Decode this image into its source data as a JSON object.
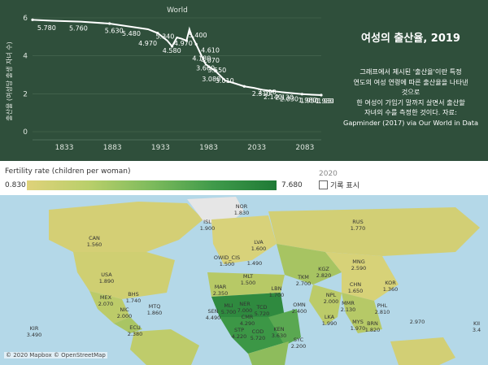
{
  "header": {
    "title": "여성의 출산율, 2019",
    "description": [
      "그래프에서 제시된 '출산율'이란 특정",
      "연도의 여성 연령에 따른 출산율을 나타낸",
      "것으로",
      "한 여성이 가임기 말까지 살면서 출산할",
      "자녀의 수를 측정한 것이다. 자료:",
      "Gapminder (2017) via Our World in Data"
    ]
  },
  "chart_data": {
    "type": "line",
    "title": "World",
    "ylabel": "출산율 (여성당 출생 자녀 수)",
    "xlim": [
      1800,
      2100
    ],
    "ylim": [
      0,
      6
    ],
    "x_ticks": [
      "1833",
      "1883",
      "1933",
      "1983",
      "2033",
      "2083"
    ],
    "y_ticks": [
      "0",
      "2",
      "4",
      "6"
    ],
    "series": [
      {
        "x": [
          1800,
          1820,
          1850,
          1880,
          1900,
          1920,
          1930,
          1935,
          1940,
          1945,
          1950,
          1955,
          1960,
          1963,
          1965,
          1970,
          1975,
          1980,
          1990,
          2000,
          2010,
          2020,
          2030,
          2040,
          2050,
          2060,
          2070,
          2080,
          2090,
          2100
        ],
        "y": [
          5.9,
          5.85,
          5.8,
          5.7,
          5.55,
          5.4,
          5.2,
          5.0,
          4.8,
          4.5,
          4.97,
          4.9,
          4.8,
          5.4,
          5.1,
          4.61,
          4.07,
          3.55,
          3.2,
          2.7,
          2.55,
          2.39,
          2.31,
          2.2,
          2.14,
          2.08,
          2.03,
          1.98,
          1.95,
          1.93
        ]
      }
    ],
    "data_labels": [
      {
        "x": 1805,
        "y": 5.78,
        "text": "5.780"
      },
      {
        "x": 1838,
        "y": 5.76,
        "text": "5.760"
      },
      {
        "x": 1875,
        "y": 5.63,
        "text": "5.630"
      },
      {
        "x": 1893,
        "y": 5.48,
        "text": "5.480"
      },
      {
        "x": 1910,
        "y": 4.97,
        "text": "4.970"
      },
      {
        "x": 1928,
        "y": 5.34,
        "text": "5.340"
      },
      {
        "x": 1935,
        "y": 4.58,
        "text": "4.580"
      },
      {
        "x": 1947,
        "y": 4.97,
        "text": "4.970"
      },
      {
        "x": 1962,
        "y": 5.4,
        "text": "5.400"
      },
      {
        "x": 1975,
        "y": 4.61,
        "text": "4.610"
      },
      {
        "x": 1975,
        "y": 4.07,
        "text": "4.070"
      },
      {
        "x": 1966,
        "y": 4.18,
        "text": "4.180"
      },
      {
        "x": 1982,
        "y": 3.55,
        "text": "3.550"
      },
      {
        "x": 1970,
        "y": 3.66,
        "text": "3.660"
      },
      {
        "x": 1990,
        "y": 3.01,
        "text": "3.010"
      },
      {
        "x": 1976,
        "y": 3.08,
        "text": "3.080"
      },
      {
        "x": 2034,
        "y": 2.39,
        "text": "2.390"
      },
      {
        "x": 2028,
        "y": 2.31,
        "text": "2.310"
      },
      {
        "x": 2052,
        "y": 2.13,
        "text": "2.130"
      },
      {
        "x": 2040,
        "y": 2.14,
        "text": "2.140"
      },
      {
        "x": 2057,
        "y": 2.03,
        "text": "2.030"
      },
      {
        "x": 2076,
        "y": 1.98,
        "text": "1.980"
      },
      {
        "x": 2078,
        "y": 1.95,
        "text": "1.950"
      },
      {
        "x": 2094,
        "y": 1.93,
        "text": "1.930"
      },
      {
        "x": 2096,
        "y": 1.93,
        "text": "1.930"
      }
    ]
  },
  "legend": {
    "title": "Fertility rate (children per woman)",
    "min": "0.830",
    "max": "7.680",
    "year": "2020",
    "record_label": "기록 표시"
  },
  "map": {
    "attribution": "© 2020 Mapbox © OpenStreetMap",
    "countries": [
      {
        "code": "ISL",
        "value": "1.900"
      },
      {
        "code": "CAN",
        "value": "1.560"
      },
      {
        "code": "NOR",
        "value": "1.830"
      },
      {
        "code": "LVA",
        "value": "1.600"
      },
      {
        "code": "RUS",
        "value": "1.770"
      },
      {
        "code": "MNG",
        "value": "2.590"
      },
      {
        "code": "KGZ",
        "value": "2.820"
      },
      {
        "code": "TKM",
        "value": "2.700"
      },
      {
        "code": "CHN",
        "value": "1.650"
      },
      {
        "code": "KOR",
        "value": "1.360"
      },
      {
        "code": "USA",
        "value": "1.890"
      },
      {
        "code": "OWID_CIS",
        "value": "1.500"
      },
      {
        "code": "MLT",
        "value": "1.500"
      },
      {
        "code": "LBN",
        "value": "1.700"
      },
      {
        "code": "NPL",
        "value": "2.000"
      },
      {
        "code": "MMR",
        "value": "2.130"
      },
      {
        "code": "MEX",
        "value": "2.070"
      },
      {
        "code": "BHS",
        "value": "1.740"
      },
      {
        "code": "MAR",
        "value": "2.350"
      },
      {
        "code": "MLI",
        "value": "5.700"
      },
      {
        "code": "NER",
        "value": "7.000"
      },
      {
        "code": "OMN",
        "value": "2.400"
      },
      {
        "code": "NIC",
        "value": "2.000"
      },
      {
        "code": "MTQ",
        "value": "1.860"
      },
      {
        "code": "SEN",
        "value": "4.490"
      },
      {
        "code": "TCD",
        "value": "5.720"
      },
      {
        "code": "PHL",
        "value": "2.810"
      },
      {
        "code": "LKA",
        "value": "1.990"
      },
      {
        "code": "ECU",
        "value": "2.380"
      },
      {
        "code": "KIR",
        "value": "3.490"
      },
      {
        "code": "STP",
        "value": "4.220"
      },
      {
        "code": "COD",
        "value": "5.720"
      },
      {
        "code": "KEN",
        "value": "3.630"
      },
      {
        "code": "SYC",
        "value": "2.200"
      },
      {
        "code": "MYS",
        "value": "1.970"
      },
      {
        "code": "BRN",
        "value": "1.820"
      },
      {
        "code": "CMR",
        "value": "4.290"
      },
      {
        "code": "KII",
        "value": "3.4"
      }
    ],
    "extra_labels": [
      "1.490",
      "2.970"
    ]
  }
}
